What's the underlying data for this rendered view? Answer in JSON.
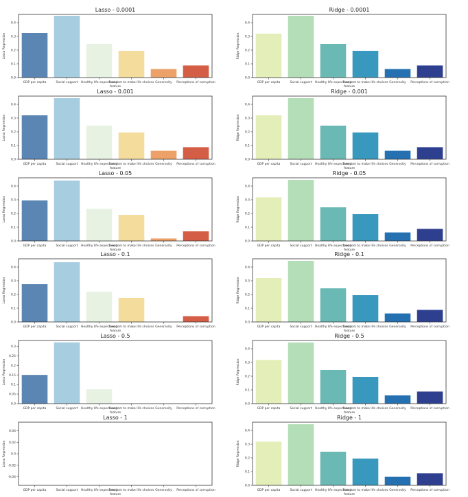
{
  "chart_data": [
    {
      "type": "bar",
      "title": "Lasso - 0.0001",
      "xlabel": "feature",
      "ylabel": "Lasso Regression",
      "ylim": [
        0,
        0.46
      ],
      "yticks": [
        0,
        0.1,
        0.2,
        0.3,
        0.4
      ],
      "categories": [
        "GDP per capita",
        "Social support",
        "Healthy life expectancy",
        "Freedom to make life choices",
        "Generosity",
        "Perceptions of corruption"
      ],
      "values": [
        0.325,
        0.45,
        0.245,
        0.195,
        0.062,
        0.088
      ],
      "colors": [
        "#5b85b3",
        "#a7cde1",
        "#e7f2e2",
        "#f3dc9c",
        "#eba167",
        "#d45e45"
      ]
    },
    {
      "type": "bar",
      "title": "Ridge - 0.0001",
      "xlabel": "feature",
      "ylabel": "Ridge Regression",
      "ylim": [
        0,
        0.46
      ],
      "yticks": [
        0,
        0.1,
        0.2,
        0.3,
        0.4
      ],
      "categories": [
        "GDP per capita",
        "Social support",
        "Healthy life expectancy",
        "Freedom to make life choices",
        "Generosity",
        "Perceptions of corruption"
      ],
      "values": [
        0.32,
        0.45,
        0.245,
        0.195,
        0.062,
        0.088
      ],
      "colors": [
        "#e4eeb8",
        "#b3deb8",
        "#6bb9b4",
        "#3898bd",
        "#2470b1",
        "#2e3f90"
      ]
    },
    {
      "type": "bar",
      "title": "Lasso - 0.001",
      "xlabel": "feature",
      "ylabel": "Lasso Regression",
      "ylim": [
        0,
        0.46
      ],
      "yticks": [
        0,
        0.1,
        0.2,
        0.3,
        0.4
      ],
      "categories": [
        "GDP per capita",
        "Social support",
        "Healthy life expectancy",
        "Freedom to make life choices",
        "Generosity",
        "Perceptions of corruption"
      ],
      "values": [
        0.32,
        0.445,
        0.245,
        0.195,
        0.062,
        0.088
      ],
      "colors": [
        "#5b85b3",
        "#a7cde1",
        "#e7f2e2",
        "#f3dc9c",
        "#eba167",
        "#d45e45"
      ]
    },
    {
      "type": "bar",
      "title": "Ridge - 0.001",
      "xlabel": "feature",
      "ylabel": "Ridge Regression",
      "ylim": [
        0,
        0.46
      ],
      "yticks": [
        0,
        0.1,
        0.2,
        0.3,
        0.4
      ],
      "categories": [
        "GDP per capita",
        "Social support",
        "Healthy life expectancy",
        "Freedom to make life choices",
        "Generosity",
        "Perceptions of corruption"
      ],
      "values": [
        0.32,
        0.445,
        0.245,
        0.195,
        0.062,
        0.088
      ],
      "colors": [
        "#e4eeb8",
        "#b3deb8",
        "#6bb9b4",
        "#3898bd",
        "#2470b1",
        "#2e3f90"
      ]
    },
    {
      "type": "bar",
      "title": "Lasso - 0.05",
      "xlabel": "feature",
      "ylabel": "Lasso Regression",
      "ylim": [
        0,
        0.46
      ],
      "yticks": [
        0,
        0.1,
        0.2,
        0.3,
        0.4
      ],
      "categories": [
        "GDP per capita",
        "Social support",
        "Healthy life expectancy",
        "Freedom to make life choices",
        "Generosity",
        "Perceptions of corruption"
      ],
      "values": [
        0.295,
        0.44,
        0.235,
        0.19,
        0.018,
        0.07
      ],
      "colors": [
        "#5b85b3",
        "#a7cde1",
        "#e7f2e2",
        "#f3dc9c",
        "#eba167",
        "#d45e45"
      ]
    },
    {
      "type": "bar",
      "title": "Ridge - 0.05",
      "xlabel": "feature",
      "ylabel": "Ridge Regression",
      "ylim": [
        0,
        0.46
      ],
      "yticks": [
        0,
        0.1,
        0.2,
        0.3,
        0.4
      ],
      "categories": [
        "GDP per capita",
        "Social support",
        "Healthy life expectancy",
        "Freedom to make life choices",
        "Generosity",
        "Perceptions of corruption"
      ],
      "values": [
        0.318,
        0.445,
        0.245,
        0.195,
        0.062,
        0.088
      ],
      "colors": [
        "#e4eeb8",
        "#b3deb8",
        "#6bb9b4",
        "#3898bd",
        "#2470b1",
        "#2e3f90"
      ]
    },
    {
      "type": "bar",
      "title": "Lasso - 0.1",
      "xlabel": "feature",
      "ylabel": "Lasso Regression",
      "ylim": [
        0,
        0.46
      ],
      "yticks": [
        0,
        0.1,
        0.2,
        0.3,
        0.4
      ],
      "categories": [
        "GDP per capita",
        "Social support",
        "Healthy life expectancy",
        "Freedom to make life choices",
        "Generosity",
        "Perceptions of corruption"
      ],
      "values": [
        0.275,
        0.435,
        0.22,
        0.175,
        0.0,
        0.042
      ],
      "colors": [
        "#5b85b3",
        "#a7cde1",
        "#e7f2e2",
        "#f3dc9c",
        "#eba167",
        "#d45e45"
      ]
    },
    {
      "type": "bar",
      "title": "Ridge - 0.1",
      "xlabel": "feature",
      "ylabel": "Ridge Regression",
      "ylim": [
        0,
        0.46
      ],
      "yticks": [
        0,
        0.1,
        0.2,
        0.3,
        0.4
      ],
      "categories": [
        "GDP per capita",
        "Social support",
        "Healthy life expectancy",
        "Freedom to make life choices",
        "Generosity",
        "Perceptions of corruption"
      ],
      "values": [
        0.32,
        0.445,
        0.245,
        0.195,
        0.062,
        0.088
      ],
      "colors": [
        "#e4eeb8",
        "#b3deb8",
        "#6bb9b4",
        "#3898bd",
        "#2470b1",
        "#2e3f90"
      ]
    },
    {
      "type": "bar",
      "title": "Lasso - 0.5",
      "xlabel": "feature",
      "ylabel": "Lasso Regression",
      "ylim": [
        0,
        0.33
      ],
      "yticks": [
        0,
        0.05,
        0.1,
        0.15,
        0.2,
        0.25,
        0.3
      ],
      "categories": [
        "GDP per capita",
        "Social support",
        "Healthy life expectancy",
        "Freedom to make life choices",
        "Generosity",
        "Perceptions of corruption"
      ],
      "values": [
        0.15,
        0.32,
        0.075,
        0.0,
        0.0,
        0.0
      ],
      "colors": [
        "#5b85b3",
        "#a7cde1",
        "#e7f2e2",
        "#f3dc9c",
        "#eba167",
        "#d45e45"
      ]
    },
    {
      "type": "bar",
      "title": "Ridge - 0.5",
      "xlabel": "feature",
      "ylabel": "Ridge Regression",
      "ylim": [
        0,
        0.46
      ],
      "yticks": [
        0,
        0.1,
        0.2,
        0.3,
        0.4
      ],
      "categories": [
        "GDP per capita",
        "Social support",
        "Healthy life expectancy",
        "Freedom to make life choices",
        "Generosity",
        "Perceptions of corruption"
      ],
      "values": [
        0.318,
        0.445,
        0.245,
        0.195,
        0.06,
        0.088
      ],
      "colors": [
        "#e4eeb8",
        "#b3deb8",
        "#6bb9b4",
        "#3898bd",
        "#2470b1",
        "#2e3f90"
      ]
    },
    {
      "type": "bar",
      "title": "Lasso - 1",
      "xlabel": "feature",
      "ylabel": "Lasso Regression",
      "ylim": [
        -0.055,
        0.055
      ],
      "yticks": [
        -0.04,
        -0.02,
        0.0,
        0.02,
        0.04
      ],
      "categories": [
        "GDP per capita",
        "Social support",
        "Healthy life expectancy",
        "Freedom to make life choices",
        "Generosity",
        "Perceptions of corruption"
      ],
      "values": [
        0,
        0,
        0,
        0,
        0,
        0
      ],
      "colors": [
        "#5b85b3",
        "#a7cde1",
        "#e7f2e2",
        "#f3dc9c",
        "#eba167",
        "#d45e45"
      ]
    },
    {
      "type": "bar",
      "title": "Ridge - 1",
      "xlabel": "feature",
      "ylabel": "Ridge Regression",
      "ylim": [
        0,
        0.46
      ],
      "yticks": [
        0,
        0.1,
        0.2,
        0.3,
        0.4
      ],
      "categories": [
        "GDP per capita",
        "Social support",
        "Healthy life expectancy",
        "Freedom to make life choices",
        "Generosity",
        "Perceptions of corruption"
      ],
      "values": [
        0.318,
        0.445,
        0.245,
        0.195,
        0.062,
        0.088
      ],
      "colors": [
        "#e4eeb8",
        "#b3deb8",
        "#6bb9b4",
        "#3898bd",
        "#2470b1",
        "#2e3f90"
      ]
    }
  ]
}
